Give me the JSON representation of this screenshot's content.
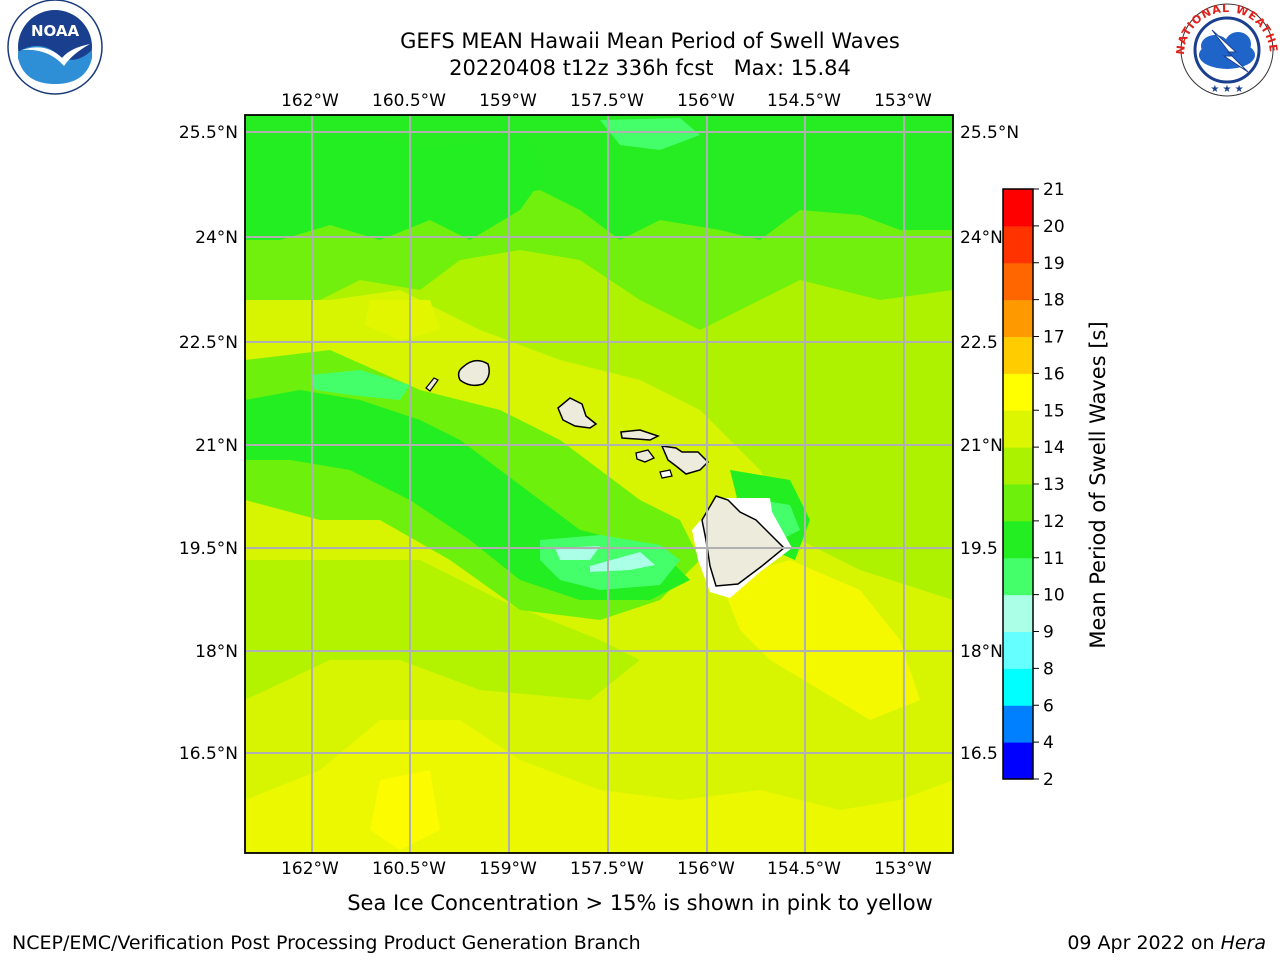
{
  "header": {
    "title_line1": "GEFS MEAN Hawaii Mean Period of Swell Waves",
    "title_line2": "20220408 t12z 336h fcst   Max: 15.84"
  },
  "map": {
    "lon_labels": [
      "162°W",
      "160.5°W",
      "159°W",
      "157.5°W",
      "156°W",
      "154.5°W",
      "153°W"
    ],
    "lat_labels": [
      "25.5°N",
      "24°N",
      "22.5°N",
      "21°N",
      "19.5°N",
      "18°N",
      "16.5°N"
    ],
    "lat_labels_right": [
      "25.5°N",
      "24°N",
      "22.5",
      "21°N",
      "19.5",
      "18°N",
      "16.5"
    ],
    "land_color": "#ecebdc",
    "base_field_color": "#d7f500"
  },
  "colorbar": {
    "label": "Mean Period of Swell Waves [s]",
    "ticks": [
      "2",
      "4",
      "6",
      "8",
      "9",
      "10",
      "11",
      "12",
      "13",
      "14",
      "15",
      "16",
      "17",
      "18",
      "19",
      "20",
      "21"
    ],
    "colors": [
      "#0000ff",
      "#0080ff",
      "#00ffff",
      "#66ffff",
      "#aaffe6",
      "#44ff6a",
      "#22ee22",
      "#6cf00c",
      "#aaf200",
      "#dcf500",
      "#ffff00",
      "#ffcc00",
      "#ff9900",
      "#ff6600",
      "#ff3300",
      "#ff0000"
    ]
  },
  "footer": {
    "note": "Sea Ice Concentration > 15% is shown in pink to yellow",
    "credit": "NCEP/EMC/Verification Post Processing Product Generation Branch",
    "date": "09 Apr 2022 on ",
    "machine": "Hera"
  },
  "logos": {
    "noaa_text": "NOAA",
    "noaa_ring": "NATIONAL OCEANIC AND ATMOSPHERIC ADMINISTRATION · U.S. DEPARTMENT OF COMMERCE",
    "nws_ring": "NATIONAL WEATHER SERVICE"
  }
}
